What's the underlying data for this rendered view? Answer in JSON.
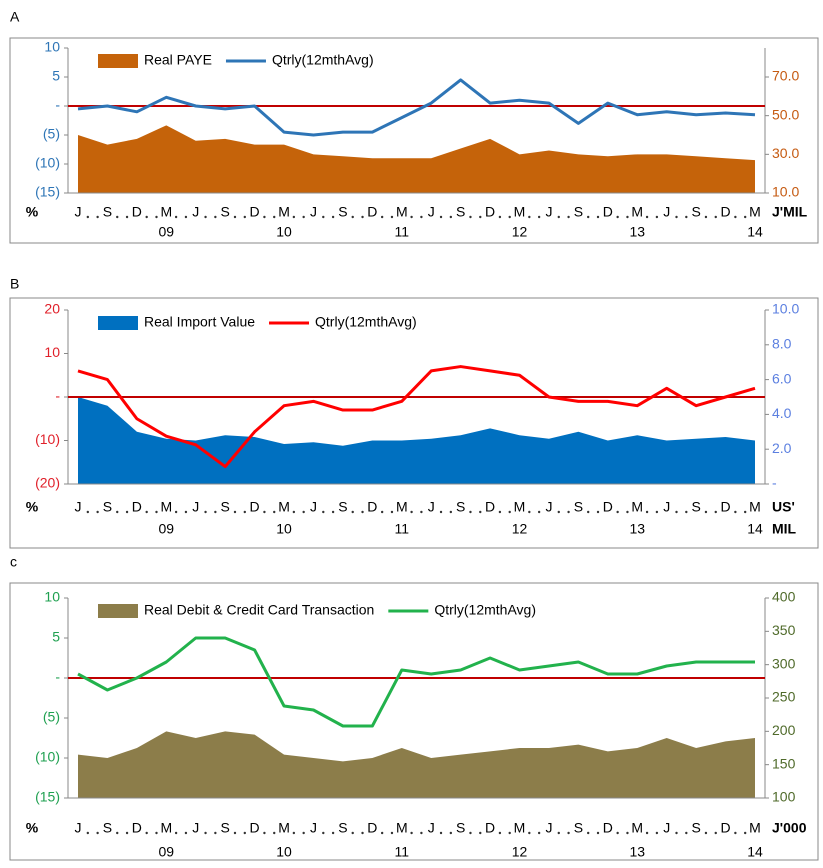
{
  "chart_data": [
    {
      "type": "combo",
      "panel_label": "A",
      "x_unit": "%",
      "y2_unit": [
        "J'MIL"
      ],
      "categories": [
        "J",
        "S",
        "D",
        "M",
        "J",
        "S",
        "D",
        "M",
        "J",
        "S",
        "D",
        "M",
        "J",
        "S",
        "D",
        "M",
        "J",
        "S",
        "D",
        "M",
        "J",
        "S",
        "D",
        "M"
      ],
      "years": [
        null,
        null,
        null,
        "09",
        null,
        null,
        null,
        "10",
        null,
        null,
        null,
        "11",
        null,
        null,
        null,
        "12",
        null,
        null,
        null,
        "13",
        null,
        null,
        null,
        "14"
      ],
      "ylim": [
        -15,
        10
      ],
      "yticks": [
        {
          "value": 10,
          "label": "10"
        },
        {
          "value": 5,
          "label": "5"
        },
        {
          "value": 0,
          "label": "-"
        },
        {
          "value": -5,
          "label": "(5)"
        },
        {
          "value": -10,
          "label": "(10)"
        },
        {
          "value": -15,
          "label": "(15)"
        }
      ],
      "y2lim": [
        10,
        85
      ],
      "y2ticks": [
        {
          "value": 10,
          "label": "10.0"
        },
        {
          "value": 30,
          "label": "30.0"
        },
        {
          "value": 50,
          "label": "50.0"
        },
        {
          "value": 70,
          "label": "70.0"
        }
      ],
      "tick_color": "#2e75b6",
      "tick2_color": "#c55a11",
      "reference_line": {
        "value": 0,
        "color": "#c00000"
      },
      "series": [
        {
          "name": "Real PAYE",
          "kind": "area",
          "axis": "y2",
          "color": "#c5630a",
          "values": [
            40,
            35,
            38,
            45,
            37,
            38,
            35,
            35,
            30,
            29,
            28,
            28,
            28,
            33,
            38,
            30,
            32,
            30,
            29,
            30,
            30,
            29,
            28,
            27
          ]
        },
        {
          "name": "Qtrly(12mthAvg)",
          "kind": "line",
          "color": "#2e75b6",
          "values": [
            -0.5,
            0,
            -1,
            1.5,
            0,
            -0.5,
            0,
            -4.5,
            -5,
            -4.5,
            -4.5,
            -2,
            0.5,
            4.5,
            0.5,
            1,
            0.5,
            -3,
            0.5,
            -1.5,
            -1,
            -1.5,
            -1.2,
            -1.5
          ]
        }
      ]
    },
    {
      "type": "combo",
      "panel_label": "B",
      "x_unit": "%",
      "y2_unit": [
        "US'",
        "MIL"
      ],
      "categories": [
        "J",
        "S",
        "D",
        "M",
        "J",
        "S",
        "D",
        "M",
        "J",
        "S",
        "D",
        "M",
        "J",
        "S",
        "D",
        "M",
        "J",
        "S",
        "D",
        "M",
        "J",
        "S",
        "D",
        "M"
      ],
      "years": [
        null,
        null,
        null,
        "09",
        null,
        null,
        null,
        "10",
        null,
        null,
        null,
        "11",
        null,
        null,
        null,
        "12",
        null,
        null,
        null,
        "13",
        null,
        null,
        null,
        "14"
      ],
      "ylim": [
        -20,
        20
      ],
      "yticks": [
        20,
        10,
        {
          "value": 0,
          "label": "-"
        },
        {
          "value": -10,
          "label": "(10)"
        },
        {
          "value": -20,
          "label": "(20)"
        }
      ],
      "y2lim": [
        0,
        10
      ],
      "y2ticks": [
        {
          "value": 0,
          "label": "-"
        },
        {
          "value": 2,
          "label": "2.0"
        },
        {
          "value": 4,
          "label": "4.0"
        },
        {
          "value": 6,
          "label": "6.0"
        },
        {
          "value": 8,
          "label": "8.0"
        },
        {
          "value": 10,
          "label": "10.0"
        }
      ],
      "tick_color": "#e0202a",
      "tick2_color": "#5b7fe0",
      "reference_line": {
        "value": 0,
        "color": "#c00000"
      },
      "series": [
        {
          "name": "Real Import Value",
          "kind": "area",
          "axis": "y2",
          "color": "#0070c0",
          "values": [
            5,
            4.5,
            3,
            2.6,
            2.5,
            2.8,
            2.7,
            2.3,
            2.4,
            2.2,
            2.5,
            2.5,
            2.6,
            2.8,
            3.2,
            2.8,
            2.6,
            3,
            2.5,
            2.8,
            2.5,
            2.6,
            2.7,
            2.5
          ]
        },
        {
          "name": "Qtrly(12mthAvg)",
          "kind": "line",
          "color": "#ff0000",
          "values": [
            6,
            4,
            -5,
            -9,
            -11,
            -16,
            -8,
            -2,
            -1,
            -3,
            -3,
            -1,
            6,
            7,
            6,
            5,
            0,
            -1,
            -1,
            -2,
            2,
            -2,
            0,
            2
          ]
        }
      ]
    },
    {
      "type": "combo",
      "panel_label": "c",
      "x_unit": "%",
      "y2_unit": [
        "J'000"
      ],
      "categories": [
        "J",
        "S",
        "D",
        "M",
        "J",
        "S",
        "D",
        "M",
        "J",
        "S",
        "D",
        "M",
        "J",
        "S",
        "D",
        "M",
        "J",
        "S",
        "D",
        "M",
        "J",
        "S",
        "D",
        "M"
      ],
      "years": [
        null,
        null,
        null,
        "09",
        null,
        null,
        null,
        "10",
        null,
        null,
        null,
        "11",
        null,
        null,
        null,
        "12",
        null,
        null,
        null,
        "13",
        null,
        null,
        null,
        "14"
      ],
      "ylim": [
        -15,
        10
      ],
      "yticks": [
        10,
        5,
        {
          "value": 0,
          "label": "-"
        },
        {
          "value": -5,
          "label": "(5)"
        },
        {
          "value": -10,
          "label": "(10)"
        },
        {
          "value": -15,
          "label": "(15)"
        }
      ],
      "y2lim": [
        100,
        400
      ],
      "y2ticks": [
        100,
        150,
        200,
        250,
        300,
        350,
        400
      ],
      "tick_color": "#1fa050",
      "tick2_color": "#4f6a2a",
      "reference_line": {
        "value": 0,
        "color": "#c00000"
      },
      "series": [
        {
          "name": "Real Debit & Credit Card Transaction",
          "kind": "area",
          "axis": "y2",
          "color": "#8c7d4a",
          "values": [
            165,
            160,
            175,
            200,
            190,
            200,
            195,
            165,
            160,
            155,
            160,
            175,
            160,
            165,
            170,
            175,
            175,
            180,
            170,
            175,
            190,
            175,
            185,
            190
          ]
        },
        {
          "name": "Qtrly(12mthAvg)",
          "kind": "line",
          "color": "#22b24c",
          "values": [
            0.5,
            -1.5,
            0,
            2,
            5,
            5,
            3.5,
            -3.5,
            -4,
            -6,
            -6,
            1,
            0.5,
            1,
            2.5,
            1,
            1.5,
            2,
            0.5,
            0.5,
            1.5,
            2,
            2,
            2
          ]
        }
      ]
    }
  ]
}
